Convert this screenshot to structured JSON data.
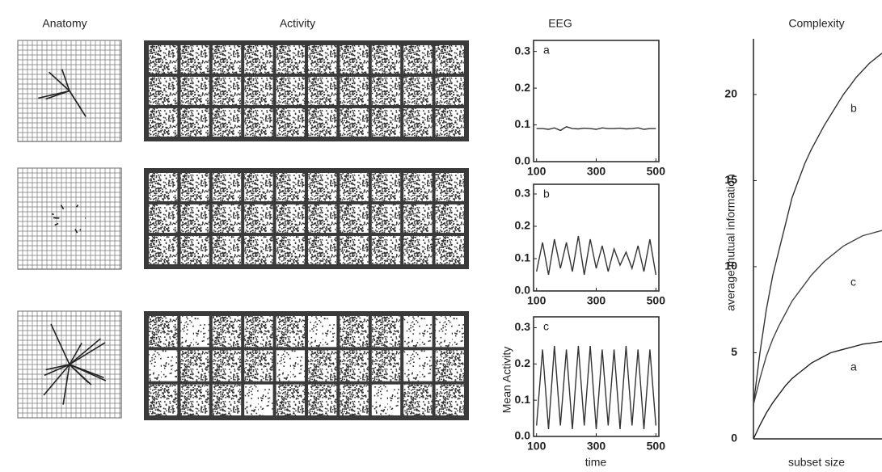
{
  "panel_titles": {
    "anatomy": "Anatomy",
    "activity": "Activity"
  },
  "chart_data": [
    {
      "type": "line",
      "title": "EEG",
      "annotation": "a",
      "color": "#333333",
      "x": [
        100,
        120,
        140,
        160,
        180,
        200,
        220,
        240,
        260,
        280,
        300,
        320,
        340,
        360,
        380,
        400,
        420,
        440,
        460,
        480,
        500
      ],
      "values": [
        0.09,
        0.09,
        0.088,
        0.092,
        0.085,
        0.095,
        0.09,
        0.089,
        0.091,
        0.09,
        0.088,
        0.092,
        0.09,
        0.09,
        0.091,
        0.089,
        0.09,
        0.092,
        0.088,
        0.09,
        0.09
      ],
      "xlim": [
        90,
        510
      ],
      "xticks": [
        100,
        300,
        500
      ],
      "ylim": [
        0,
        0.33
      ],
      "yticks": [
        {
          "value": 0,
          "label": "0.0"
        },
        0.1,
        0.2,
        0.3
      ]
    },
    {
      "type": "line",
      "annotation": "b",
      "color": "#333333",
      "x": [
        100,
        120,
        140,
        160,
        180,
        200,
        220,
        240,
        260,
        280,
        300,
        320,
        340,
        360,
        380,
        400,
        420,
        440,
        460,
        480,
        500
      ],
      "values": [
        0.06,
        0.15,
        0.05,
        0.16,
        0.07,
        0.15,
        0.06,
        0.17,
        0.05,
        0.16,
        0.07,
        0.14,
        0.06,
        0.13,
        0.08,
        0.12,
        0.07,
        0.14,
        0.06,
        0.16,
        0.05
      ],
      "xlim": [
        90,
        510
      ],
      "xticks": [
        100,
        300,
        500
      ],
      "ylim": [
        0,
        0.33
      ],
      "yticks": [
        {
          "value": 0,
          "label": "0.0"
        },
        0.1,
        0.2,
        0.3
      ]
    },
    {
      "type": "line",
      "annotation": "c",
      "color": "#333333",
      "ylabel": "Mean Activity",
      "xlabel": "time",
      "x": [
        100,
        120,
        140,
        160,
        180,
        200,
        220,
        240,
        260,
        280,
        300,
        320,
        340,
        360,
        380,
        400,
        420,
        440,
        460,
        480,
        500
      ],
      "values": [
        0.03,
        0.24,
        0.02,
        0.25,
        0.03,
        0.24,
        0.02,
        0.25,
        0.03,
        0.25,
        0.02,
        0.24,
        0.03,
        0.24,
        0.02,
        0.25,
        0.03,
        0.24,
        0.02,
        0.24,
        0.03
      ],
      "xlim": [
        90,
        510
      ],
      "xticks": [
        100,
        300,
        500
      ],
      "ylim": [
        0,
        0.33
      ],
      "yticks": [
        {
          "value": 0,
          "label": "0.0"
        },
        0.1,
        0.2,
        0.3
      ]
    },
    {
      "type": "line",
      "title": "Complexity",
      "ylabel": "average mutual information",
      "xlabel": "subset size",
      "x": [
        0,
        1,
        2,
        3,
        4,
        5,
        6,
        7,
        8,
        9,
        10,
        11,
        12,
        13,
        14,
        15,
        16,
        17,
        18,
        19,
        20
      ],
      "series": [
        {
          "name": "a",
          "color": "#222222",
          "values": [
            0,
            0.8,
            1.5,
            2.1,
            2.6,
            3.1,
            3.5,
            3.8,
            4.1,
            4.4,
            4.6,
            4.8,
            5,
            5.1,
            5.2,
            5.3,
            5.4,
            5.5,
            5.55,
            5.6,
            5.65
          ]
        },
        {
          "name": "b",
          "color": "#333333",
          "values": [
            2,
            5,
            7.5,
            9.5,
            11,
            12.5,
            14,
            15,
            16,
            16.8,
            17.5,
            18.2,
            18.8,
            19.4,
            20,
            20.5,
            21,
            21.4,
            21.8,
            22.1,
            22.4
          ]
        },
        {
          "name": "c",
          "color": "#444444",
          "values": [
            2,
            3.5,
            4.8,
            5.8,
            6.6,
            7.3,
            8,
            8.5,
            9,
            9.5,
            9.9,
            10.3,
            10.6,
            10.9,
            11.2,
            11.4,
            11.6,
            11.8,
            11.9,
            12,
            12.1
          ]
        }
      ],
      "xlim": [
        0,
        20
      ],
      "ylim": [
        0,
        23
      ],
      "yticks": [
        0,
        5,
        10,
        15,
        20
      ]
    }
  ]
}
